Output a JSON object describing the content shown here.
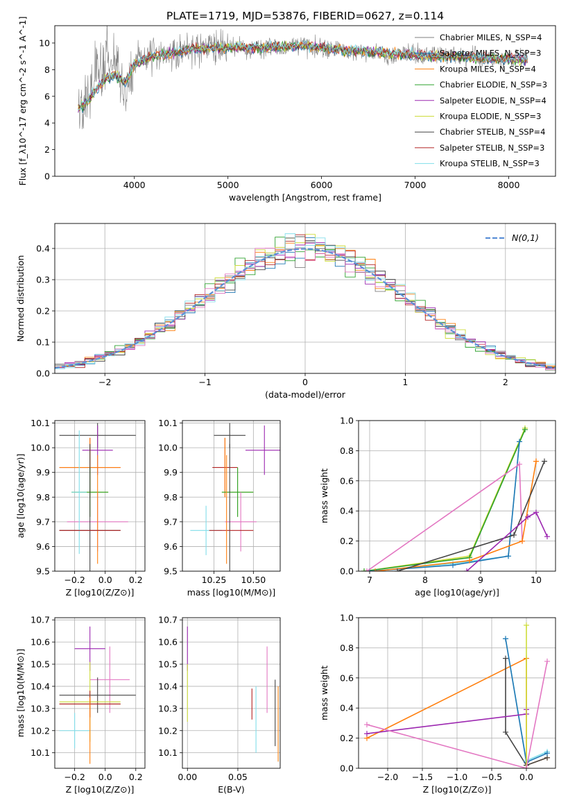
{
  "figure": {
    "title": "PLATE=1719, MJD=53876, FIBERID=0627, z=0.114"
  },
  "colors": {
    "Chabrier MILES": "#7f7f7f",
    "Salpeter MILES": "#1f77b4",
    "Kroupa MILES": "#ff7f0e",
    "Chabrier ELODIE": "#2ca02c",
    "Salpeter ELODIE": "#9c27b0",
    "Kroupa ELODIE": "#cddc39",
    "Chabrier STELIB": "#444444",
    "Salpeter STELIB": "#b22222",
    "Kroupa STELIB": "#80deea",
    "extra_pink": "#e377c2"
  },
  "chart_data": [
    {
      "id": "spectrum",
      "type": "line",
      "title": "PLATE=1719, MJD=53876, FIBERID=0627, z=0.114",
      "xlabel": "wavelength [Angstrom, rest frame]",
      "ylabel": "Flux [f_λ10^-17 erg cm^-2 s^-1 A^-1]",
      "xlim": [
        3150,
        8500
      ],
      "ylim": [
        0,
        11.3
      ],
      "xticks": [
        4000,
        5000,
        6000,
        7000,
        8000
      ],
      "yticks": [
        0,
        2,
        4,
        6,
        8,
        10
      ],
      "grid": false,
      "legend_position": "right",
      "series_noisy": {
        "name": "data",
        "x": [
          3400,
          3450,
          3500,
          3550,
          3600,
          3650,
          3700,
          3750,
          3800,
          3850,
          3900,
          3950,
          4000,
          4100,
          4200,
          4300,
          4400,
          4500,
          4600,
          4700,
          4800,
          4900,
          5000,
          5100,
          5200,
          5300,
          5400,
          5500,
          5600,
          5700,
          5800,
          5900,
          6000,
          6100,
          6200,
          6300,
          6400,
          6500,
          6600,
          6700,
          6800,
          6900,
          7000,
          7100,
          7200,
          7300,
          7400,
          7500,
          7600,
          7700,
          7800,
          7900,
          8000,
          8100,
          8200
        ],
        "y": [
          5.0,
          5.3,
          6.5,
          7.2,
          8.3,
          7.8,
          8.6,
          7.9,
          8.7,
          7.6,
          6.0,
          7.0,
          8.3,
          8.9,
          9.2,
          9.0,
          9.4,
          9.1,
          9.7,
          9.3,
          9.9,
          9.5,
          9.6,
          9.7,
          9.4,
          9.8,
          9.6,
          9.7,
          9.5,
          9.8,
          9.9,
          9.7,
          9.6,
          9.4,
          9.6,
          9.2,
          9.5,
          9.1,
          9.3,
          9.0,
          9.2,
          9.1,
          9.3,
          9.0,
          9.2,
          9.0,
          9.1,
          8.9,
          9.0,
          8.8,
          8.9,
          8.7,
          8.8,
          8.8,
          8.8
        ]
      },
      "series_models": [
        {
          "name": "Chabrier MILES",
          "label": "Chabrier MILES, N_SSP=4"
        },
        {
          "name": "Salpeter MILES",
          "label": "Salpeter MILES, N_SSP=3"
        },
        {
          "name": "Kroupa MILES",
          "label": "Kroupa MILES, N_SSP=4"
        },
        {
          "name": "Chabrier ELODIE",
          "label": "Chabrier ELODIE, N_SSP=3"
        },
        {
          "name": "Salpeter ELODIE",
          "label": "Salpeter ELODIE, N_SSP=4"
        },
        {
          "name": "Kroupa ELODIE",
          "label": "Kroupa ELODIE, N_SSP=3"
        },
        {
          "name": "Chabrier STELIB",
          "label": "Chabrier STELIB, N_SSP=4"
        },
        {
          "name": "Salpeter STELIB",
          "label": "Salpeter STELIB, N_SSP=3"
        },
        {
          "name": "Kroupa STELIB",
          "label": "Kroupa STELIB, N_SSP=3"
        }
      ],
      "model_curve": {
        "x": [
          3400,
          3500,
          3600,
          3700,
          3800,
          3900,
          4000,
          4200,
          4400,
          4600,
          4800,
          5000,
          5200,
          5400,
          5600,
          5800,
          6000,
          6200,
          6400,
          6600,
          6800,
          7000,
          7200,
          7400,
          7600,
          7800,
          8000,
          8200
        ],
        "y": [
          5.1,
          5.6,
          6.6,
          7.4,
          7.6,
          7.0,
          8.4,
          9.0,
          9.2,
          9.5,
          9.6,
          9.6,
          9.7,
          9.6,
          9.7,
          9.8,
          9.6,
          9.5,
          9.4,
          9.3,
          9.2,
          9.1,
          9.0,
          9.0,
          8.9,
          8.8,
          8.8,
          8.7
        ]
      }
    },
    {
      "id": "residuals",
      "type": "step",
      "xlabel": "(data-model)/error",
      "ylabel": "Normed distribution",
      "xlim": [
        -2.5,
        2.5
      ],
      "ylim": [
        0,
        0.48
      ],
      "xticks": [
        -2,
        -1,
        0,
        1,
        2
      ],
      "yticks": [
        0.0,
        0.1,
        0.2,
        0.3,
        0.4
      ],
      "grid": true,
      "legend_position": "top-right",
      "gaussian_label": "N(0,1)",
      "bin_width": 0.1
    },
    {
      "id": "age_vs_Z",
      "type": "errorbar",
      "xlabel": "Z [log10(Z/Z⊙)]",
      "ylabel": "age [log10(age/yr)]",
      "xlim": [
        -0.33,
        0.26
      ],
      "ylim": [
        9.5,
        10.11
      ],
      "xticks": [
        -0.2,
        0.0,
        0.2
      ],
      "yticks": [
        9.5,
        9.6,
        9.7,
        9.8,
        9.9,
        10.0,
        10.1
      ],
      "grid": true,
      "points": [
        {
          "series": "Chabrier STELIB",
          "x": -0.05,
          "xerr": 0.25,
          "y": 10.05,
          "yerr": 0.05
        },
        {
          "series": "Salpeter ELODIE",
          "x": -0.05,
          "xerr": 0.1,
          "y": 9.99,
          "yerr": 0.1
        },
        {
          "series": "Salpeter STELIB",
          "x": -0.1,
          "xerr": 0.2,
          "y": 9.92,
          "yerr": 0.12
        },
        {
          "series": "Kroupa MILES",
          "x": -0.1,
          "xerr": 0.2,
          "y": 9.92,
          "yerr": 0.12
        },
        {
          "series": "Kroupa ELODIE",
          "x": -0.1,
          "xerr": 0.12,
          "y": 9.82,
          "yerr": 0.1
        },
        {
          "series": "Chabrier ELODIE",
          "x": -0.1,
          "xerr": 0.12,
          "y": 9.82,
          "yerr": 0.1
        },
        {
          "series": "extra_pink",
          "x": -0.05,
          "xerr": 0.2,
          "y": 9.7,
          "yerr": 0.12
        },
        {
          "series": "Chabrier STELIB",
          "x": -0.1,
          "xerr": 0.2,
          "y": 9.665,
          "yerr": 0.35
        },
        {
          "series": "Kroupa STELIB",
          "x": -0.17,
          "xerr": 0.05,
          "y": 9.82,
          "yerr": 0.25
        },
        {
          "series": "Kroupa MILES",
          "x": -0.05,
          "xerr": 0.0,
          "y": 9.75,
          "yerr": 0.22
        },
        {
          "series": "Salpeter STELIB",
          "x": -0.1,
          "xerr": 0.2,
          "y": 9.665,
          "yerr": 0.0
        }
      ]
    },
    {
      "id": "age_vs_mass",
      "type": "errorbar",
      "xlabel": "mass [log10(M/M⊙)]",
      "ylabel": "",
      "xlim": [
        10.05,
        10.67
      ],
      "ylim": [
        9.5,
        10.11
      ],
      "xticks": [
        10.25,
        10.5
      ],
      "yticks": [
        9.5,
        9.6,
        9.7,
        9.8,
        9.9,
        10.0,
        10.1
      ],
      "grid": true,
      "points": [
        {
          "series": "Chabrier STELIB",
          "x": 10.35,
          "xerr": 0.1,
          "y": 10.05,
          "yerr": 0.05
        },
        {
          "series": "Salpeter ELODIE",
          "x": 10.57,
          "xerr": 0.12,
          "y": 9.99,
          "yerr": 0.1
        },
        {
          "series": "Salpeter STELIB",
          "x": 10.32,
          "xerr": 0.08,
          "y": 9.92,
          "yerr": 0.12
        },
        {
          "series": "Kroupa MILES",
          "x": 10.32,
          "xerr": 0.0,
          "y": 9.92,
          "yerr": 0.12
        },
        {
          "series": "Kroupa ELODIE",
          "x": 10.4,
          "xerr": 0.1,
          "y": 9.82,
          "yerr": 0.1
        },
        {
          "series": "Chabrier ELODIE",
          "x": 10.4,
          "xerr": 0.1,
          "y": 9.82,
          "yerr": 0.1
        },
        {
          "series": "extra_pink",
          "x": 10.42,
          "xerr": 0.1,
          "y": 9.7,
          "yerr": 0.12
        },
        {
          "series": "Kroupa STELIB",
          "x": 10.2,
          "xerr": 0.1,
          "y": 9.665,
          "yerr": 0.1
        },
        {
          "series": "Chabrier STELIB",
          "x": 10.35,
          "xerr": 0.0,
          "y": 9.665,
          "yerr": 0.35
        },
        {
          "series": "Salpeter STELIB",
          "x": 10.36,
          "xerr": 0.14,
          "y": 9.665,
          "yerr": 0.0
        },
        {
          "series": "Kroupa MILES",
          "x": 10.33,
          "xerr": 0.0,
          "y": 9.75,
          "yerr": 0.22
        }
      ]
    },
    {
      "id": "massweight_vs_age",
      "type": "line",
      "xlabel": "age [log10(age/yr)]",
      "ylabel": "mass weight",
      "xlim": [
        6.8,
        10.35
      ],
      "ylim": [
        0,
        1
      ],
      "xticks": [
        7,
        8,
        9,
        10
      ],
      "yticks": [
        0.0,
        0.2,
        0.4,
        0.6,
        0.8,
        1.0
      ],
      "grid": true,
      "series": [
        {
          "name": "Kroupa ELODIE",
          "x": [
            6.9,
            8.8,
            9.8
          ],
          "y": [
            0.0,
            0.1,
            0.95
          ]
        },
        {
          "name": "Chabrier ELODIE",
          "x": [
            6.9,
            8.8,
            9.8
          ],
          "y": [
            0.0,
            0.09,
            0.94
          ]
        },
        {
          "name": "Kroupa STELIB",
          "x": [
            7.0,
            8.5,
            9.5,
            9.7
          ],
          "y": [
            0.0,
            0.05,
            0.1,
            0.86
          ]
        },
        {
          "name": "Salpeter MILES",
          "x": [
            7.0,
            8.5,
            9.5,
            9.7
          ],
          "y": [
            0.0,
            0.04,
            0.1,
            0.86
          ]
        },
        {
          "name": "extra_pink",
          "x": [
            6.95,
            9.7,
            9.75
          ],
          "y": [
            0.0,
            0.71,
            0.2
          ]
        },
        {
          "name": "Kroupa MILES",
          "x": [
            7.1,
            8.8,
            9.75,
            10.0,
            10.0
          ],
          "y": [
            0.0,
            0.07,
            0.2,
            0.73,
            0.73
          ]
        },
        {
          "name": "Chabrier STELIB",
          "x": [
            7.5,
            9.6,
            10.15
          ],
          "y": [
            0.0,
            0.24,
            0.73
          ]
        },
        {
          "name": "Salpeter ELODIE",
          "x": [
            8.75,
            9.85,
            10.0,
            10.2
          ],
          "y": [
            0.0,
            0.36,
            0.39,
            0.23
          ]
        }
      ]
    },
    {
      "id": "mass_vs_Z",
      "type": "errorbar",
      "xlabel": "Z [log10(Z/Z⊙)]",
      "ylabel": "mass [log10(M/M⊙)]",
      "xlim": [
        -0.33,
        0.26
      ],
      "ylim": [
        10.03,
        10.71
      ],
      "xticks": [
        -0.2,
        0.0,
        0.2
      ],
      "yticks": [
        10.1,
        10.2,
        10.3,
        10.4,
        10.5,
        10.6,
        10.7
      ],
      "grid": true,
      "points": [
        {
          "series": "Salpeter ELODIE",
          "x": -0.1,
          "xerr": 0.1,
          "y": 10.57,
          "yerr": 0.1
        },
        {
          "series": "extra_pink",
          "x": 0.03,
          "xerr": 0.13,
          "y": 10.43,
          "yerr": 0.15
        },
        {
          "series": "Chabrier STELIB",
          "x": -0.05,
          "xerr": 0.25,
          "y": 10.36,
          "yerr": 0.08
        },
        {
          "series": "Kroupa ELODIE",
          "x": -0.1,
          "xerr": 0.2,
          "y": 10.33,
          "yerr": 0.18
        },
        {
          "series": "Chabrier ELODIE",
          "x": -0.1,
          "xerr": 0.2,
          "y": 10.32,
          "yerr": 0.0
        },
        {
          "series": "Kroupa MILES",
          "x": -0.1,
          "xerr": 0.2,
          "y": 10.32,
          "yerr": 0.0
        },
        {
          "series": "Salpeter STELIB",
          "x": -0.1,
          "xerr": 0.2,
          "y": 10.32,
          "yerr": 0.06
        },
        {
          "series": "Kroupa STELIB",
          "x": -0.2,
          "xerr": 0.1,
          "y": 10.2,
          "yerr": 0.08
        },
        {
          "series": "Kroupa MILES",
          "x": -0.1,
          "xerr": 0.0,
          "y": 10.2,
          "yerr": 0.15
        }
      ]
    },
    {
      "id": "mass_vs_ebv",
      "type": "errorbar",
      "xlabel": "E(B-V)",
      "ylabel": "",
      "xlim": [
        -0.005,
        0.092
      ],
      "ylim": [
        10.03,
        10.71
      ],
      "xticks": [
        0.0,
        0.05
      ],
      "yticks": [
        10.1,
        10.2,
        10.3,
        10.4,
        10.5,
        10.6,
        10.7
      ],
      "grid": true,
      "points": [
        {
          "series": "Salpeter ELODIE",
          "x": 0.0,
          "xerr": 0.0,
          "y": 10.57,
          "yerr": 0.1
        },
        {
          "series": "Kroupa ELODIE",
          "x": 0.0,
          "xerr": 0.0,
          "y": 10.37,
          "yerr": 0.13
        },
        {
          "series": "Salpeter STELIB",
          "x": 0.064,
          "xerr": 0.0,
          "y": 10.32,
          "yerr": 0.07
        },
        {
          "series": "Kroupa STELIB",
          "x": 0.068,
          "xerr": 0.0,
          "y": 10.25,
          "yerr": 0.15
        },
        {
          "series": "extra_pink",
          "x": 0.079,
          "xerr": 0.0,
          "y": 10.43,
          "yerr": 0.15
        },
        {
          "series": "Chabrier STELIB",
          "x": 0.087,
          "xerr": 0.0,
          "y": 10.28,
          "yerr": 0.15
        },
        {
          "series": "Kroupa MILES",
          "x": 0.09,
          "xerr": 0.0,
          "y": 10.23,
          "yerr": 0.17
        }
      ]
    },
    {
      "id": "massweight_vs_Z",
      "type": "line",
      "xlabel": "Z [log10(Z/Z⊙)]",
      "ylabel": "mass weight",
      "xlim": [
        -2.42,
        0.42
      ],
      "ylim": [
        0,
        1
      ],
      "xticks": [
        -2.0,
        -1.5,
        -1.0,
        -0.5,
        0.0
      ],
      "yticks": [
        0.0,
        0.2,
        0.4,
        0.6,
        0.8,
        1.0
      ],
      "grid": true,
      "series": [
        {
          "name": "Kroupa MILES",
          "x": [
            -2.3,
            0.0,
            0.0,
            0.3
          ],
          "y": [
            0.2,
            0.73,
            0.02,
            0.07
          ]
        },
        {
          "name": "Chabrier STELIB",
          "x": [
            -0.3,
            -0.3,
            0.0,
            0.3
          ],
          "y": [
            0.73,
            0.24,
            0.02,
            0.07
          ]
        },
        {
          "name": "Kroupa STELIB",
          "x": [
            -0.3,
            0.0,
            0.3
          ],
          "y": [
            0.86,
            0.05,
            0.11
          ]
        },
        {
          "name": "Salpeter MILES",
          "x": [
            -0.3,
            0.0,
            0.3
          ],
          "y": [
            0.86,
            0.04,
            0.1
          ]
        },
        {
          "name": "Salpeter ELODIE",
          "x": [
            -2.3,
            0.0,
            0.0
          ],
          "y": [
            0.23,
            0.36,
            0.39
          ]
        },
        {
          "name": "Kroupa ELODIE",
          "x": [
            0.0,
            0.0
          ],
          "y": [
            0.95,
            0.0
          ]
        },
        {
          "name": "extra_pink",
          "x": [
            -2.3,
            0.0,
            0.3
          ],
          "y": [
            0.29,
            0.0,
            0.71
          ]
        }
      ]
    }
  ]
}
